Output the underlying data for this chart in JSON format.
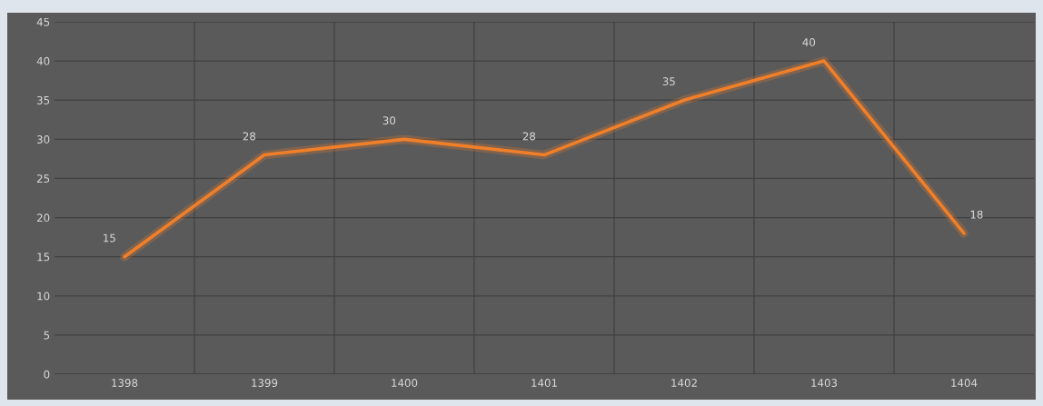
{
  "chart_data": {
    "type": "line",
    "categories": [
      "1398",
      "1399",
      "1400",
      "1401",
      "1402",
      "1403",
      "1404"
    ],
    "series": [
      {
        "color": "#f07f2a",
        "values": [
          15,
          28,
          30,
          28,
          35,
          40,
          18
        ]
      }
    ],
    "ylim": [
      0,
      45
    ],
    "yticks": [
      0,
      5,
      10,
      15,
      20,
      25,
      30,
      35,
      40,
      45
    ],
    "grid": true,
    "data_labels": true,
    "marker": "none",
    "line_style": "solid",
    "legend": false
  }
}
